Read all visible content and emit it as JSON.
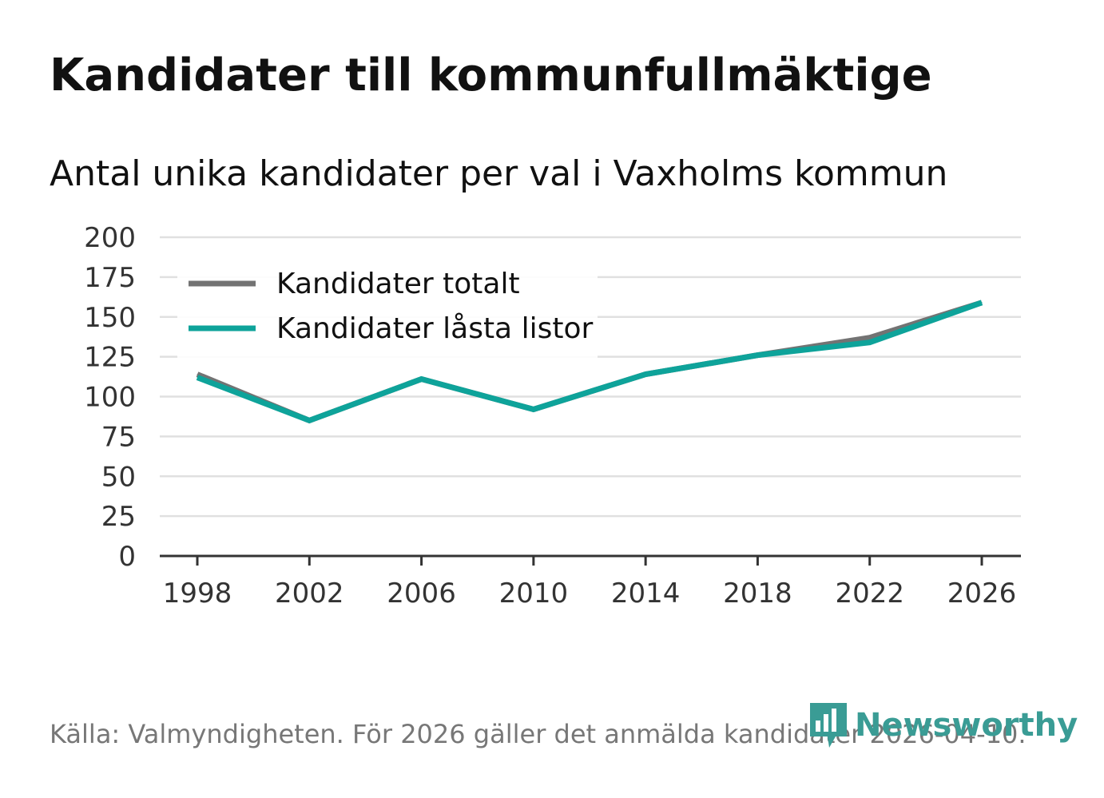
{
  "header": {
    "title": "Kandidater till kommunfullmäktige",
    "subtitle": "Antal unika kandidater per val i Vaxholms kommun"
  },
  "footer": {
    "source": "Källa: Valmyndigheten. För 2026 gäller det anmälda kandidater 2026-04-10.",
    "brand": "Newsworthy"
  },
  "colors": {
    "total": "#737373",
    "locked": "#0ea39a",
    "grid": "#e0e0e0",
    "axis": "#333333",
    "brand": "#3a9c95"
  },
  "chart_data": {
    "type": "line",
    "title": "Kandidater till kommunfullmäktige",
    "subtitle": "Antal unika kandidater per val i Vaxholms kommun",
    "xlabel": "",
    "ylabel": "",
    "categories": [
      "1998",
      "2002",
      "2006",
      "2010",
      "2014",
      "2018",
      "2022",
      "2026"
    ],
    "ylim": [
      0,
      200
    ],
    "yticks": [
      "0",
      "25",
      "50",
      "75",
      "100",
      "125",
      "150",
      "175",
      "200"
    ],
    "grid": true,
    "legend_position": "top-left",
    "series": [
      {
        "name": "Kandidater totalt",
        "color": "#737373",
        "values": [
          114,
          85,
          111,
          92,
          114,
          126,
          137,
          159
        ]
      },
      {
        "name": "Kandidater låsta listor",
        "color": "#0ea39a",
        "values": [
          112,
          85,
          111,
          92,
          114,
          126,
          134,
          159
        ]
      }
    ]
  }
}
